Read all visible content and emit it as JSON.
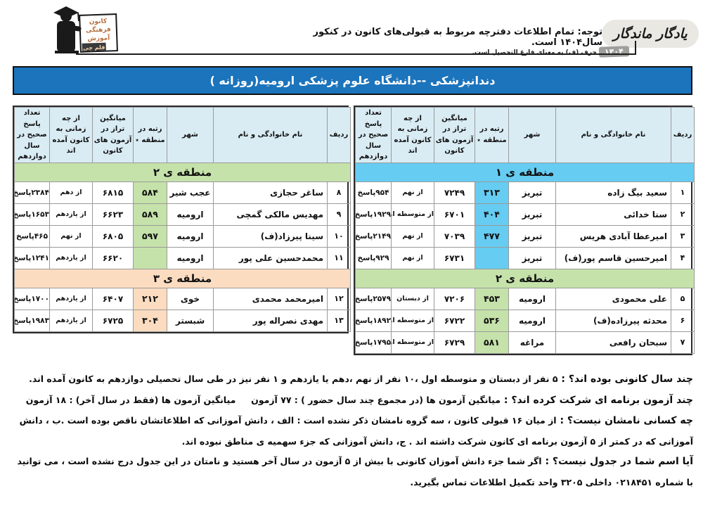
{
  "header": {
    "logo_lines": [
      "کانون",
      "فرهنگی",
      "آموزش",
      "قلم چی"
    ],
    "notice_main": "توجه: تمام اطلاعات دفترچه مربوط به قبولی‌های کانون در کنکور سال۱۴۰۴ است.",
    "notice_sub": "٭ حرف (ف) به معنای فارغ التحصیل است.",
    "brand": "یادگار ماندگار",
    "brand_year": "۱۴۰۴"
  },
  "title": "دندانپزشکی --دانشگاه علوم پزشکی ارومیه(روزانه )",
  "table_columns": [
    "ردیف",
    "نام خانوادگی و نام",
    "شهر",
    "رتبه در منطقه ٭",
    "میانگین تراز در آزمون های کانون",
    "از چه زمانی به کانون آمده اند",
    "تعداد پاسخ صحیح در سال دوازدهم"
  ],
  "tables": {
    "right": {
      "sections": [
        {
          "banner": "منطقه ی ۱",
          "region": "region1",
          "rows": [
            [
              "۱",
              "سعید بیگ زاده",
              "تبریز",
              "۳۱۳",
              "۷۲۴۹",
              "از نهم",
              "۹۵۴پاسخ"
            ],
            [
              "۲",
              "سنا خدائی",
              "تبریز",
              "۴۰۴",
              "۶۷۰۱",
              "از متوسطه اول",
              "۱۹۲۹پاسخ"
            ],
            [
              "۳",
              "امیرعطا آبادی هریس",
              "تبریز",
              "۴۷۷",
              "۷۰۳۹",
              "از نهم",
              "۲۱۴۹پاسخ"
            ],
            [
              "۴",
              "امیرحسین قاسم پور(ف)",
              "تبریز",
              "",
              "۶۷۳۱",
              "از نهم",
              "۹۲۹پاسخ"
            ]
          ]
        },
        {
          "banner": "منطقه ی ۲",
          "region": "region2",
          "rows": [
            [
              "۵",
              "علی محمودی",
              "ارومیه",
              "۴۵۳",
              "۷۲۰۶",
              "از دبستان",
              "۲۵۷۹پاسخ"
            ],
            [
              "۶",
              "محدثه پیرزاده(ف)",
              "ارومیه",
              "۵۳۶",
              "۶۷۲۲",
              "از متوسطه اول",
              "۱۸۹۲پاسخ"
            ],
            [
              "۷",
              "سبحان رافعی",
              "مراغه",
              "۵۸۱",
              "۶۷۲۹",
              "از متوسطه اول",
              "۱۷۹۵پاسخ"
            ]
          ]
        }
      ]
    },
    "left": {
      "sections": [
        {
          "banner": "منطقه ی ۲",
          "region": "region2",
          "rows": [
            [
              "۸",
              "ساغر حجازی",
              "عجب شیر",
              "۵۸۴",
              "۶۸۱۵",
              "از دهم",
              "۲۳۸۴پاسخ"
            ],
            [
              "۹",
              "مهدیس مالکی گمچی",
              "ارومیه",
              "۵۸۹",
              "۶۶۲۳",
              "از یازدهم",
              "۱۶۵۳پاسخ"
            ],
            [
              "۱۰",
              "سینا پیرزاد(ف)",
              "ارومیه",
              "۵۹۷",
              "۶۸۰۵",
              "از نهم",
              "۴۶۵پاسخ"
            ],
            [
              "۱۱",
              "محمدحسین علی پور",
              "ارومیه",
              "",
              "۶۶۲۰",
              "از یازدهم",
              "۱۲۴۱پاسخ"
            ]
          ]
        },
        {
          "banner": "منطقه ی ۳",
          "region": "region3",
          "rows": [
            [
              "۱۲",
              "امیرمحمد محمدی",
              "خوی",
              "۲۱۲",
              "۶۴۰۷",
              "از یازدهم",
              "۱۷۰۰پاسخ"
            ],
            [
              "۱۳",
              "مهدی نصراله پور",
              "شبستر",
              "۳۰۴",
              "۶۷۲۵",
              "از یازدهم",
              "۱۹۸۳پاسخ"
            ]
          ]
        }
      ]
    }
  },
  "footer": {
    "paragraphs": [
      {
        "lead": "چند سال کانونی بوده اند؟ :",
        "text": "۵ نفر از دبستان و متوسطه اول ،۱۰ نفر از نهم ،دهم یا یازدهم و ۱ نفر نیز در طی سال تحصیلی دوازدهم به کانون آمده اند."
      },
      {
        "lead": "چند آزمون برنامه ای شرکت کرده اند؟ :",
        "text": "میانگین آزمون ها (در مجموع چند سال حضور ) : ۷۷ آزمون     میانگین آزمون ها (فقط در سال آخر) : ۱۸ آزمون"
      },
      {
        "lead": "چه کسانی نامشان نیست؟ :",
        "text": "از میان ۱۶ قبولی کانون ، سه گروه نامشان ذکر نشده است : الف ، دانش آموزانی که اطلاعاتشان ناقص بوده است .ب ، دانش آموزانی که در کمتر از ۵ آزمون برنامه ای کانون شرکت داشته اند . ج، دانش آموزانی که جزء سهمیه ی مناطق نبوده اند."
      },
      {
        "lead": "آیا اسم شما در جدول نیست؟ :",
        "text": "اگر شما جزء دانش آموزان کانونی با بیش از ۵ آزمون در سال آخر هستید و نامتان در این جدول درج نشده است ، می توانید با شماره ۰۲۱۸۴۵۱ داخلی ۳۲۰۵ واحد تکمیل اطلاعات تماس بگیرید."
      }
    ]
  },
  "colors": {
    "title_bar_bg": "#1b74bc",
    "hdr_bg": "#d9ecf4",
    "region1": "#66ccf2",
    "region2": "#c5e2aa",
    "region3": "#fbdcc0",
    "brand_bg": "#e9e8e3",
    "badge_bg": "#9e9e9c"
  }
}
